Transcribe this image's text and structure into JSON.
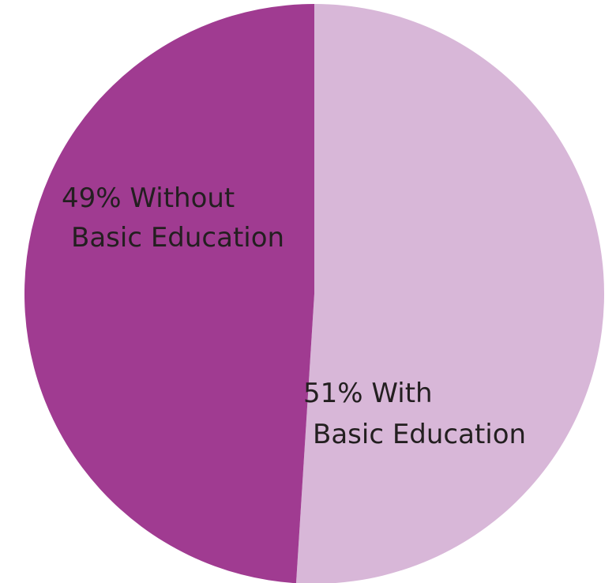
{
  "chart_data": {
    "type": "pie",
    "title": "",
    "slices": [
      {
        "value": 51,
        "label_line1": "51% With",
        "label_line2": "Basic Education",
        "color": "#d8b7d8"
      },
      {
        "value": 49,
        "label_line1": "49% Without",
        "label_line2": "Basic Education",
        "color": "#a03b91"
      }
    ],
    "start_angle_deg": 0,
    "direction": "clockwise",
    "legend": "none"
  }
}
